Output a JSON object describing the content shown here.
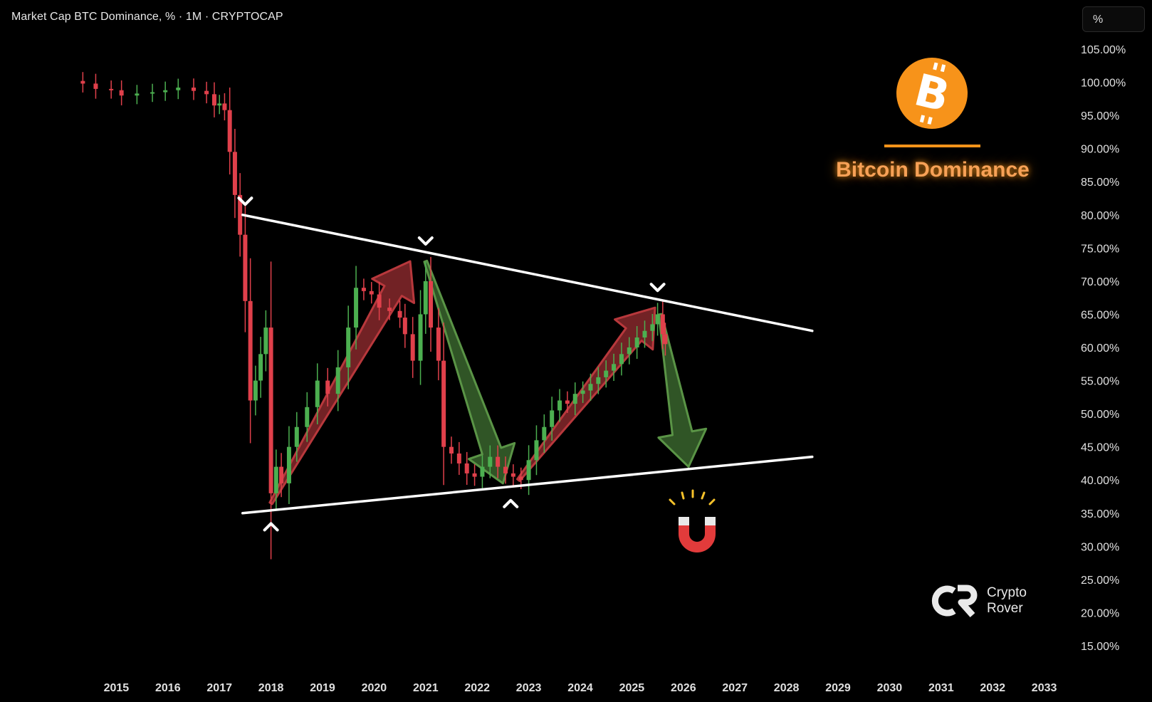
{
  "header": {
    "title": "Market Cap BTC Dominance, % · 1M · CRYPTOCAP",
    "unit_button": "%"
  },
  "overlay": {
    "badge_title": "Bitcoin Dominance",
    "brand_line1": "Crypto",
    "brand_line2": "Rover"
  },
  "colors": {
    "background": "#000000",
    "bull_candle": "#4caf50",
    "bear_candle": "#e0404b",
    "bull_arrow": "#8f2a2e",
    "bear_arrow": "#3c6a30",
    "accent": "#f7931a",
    "trendline": "#ffffff"
  },
  "icons": [
    "bitcoin-logo-icon",
    "magnet-icon",
    "crypto-rover-logo-icon"
  ],
  "chart_data": {
    "type": "candlestick",
    "interval": "1M",
    "ylim": [
      15,
      105
    ],
    "y_ticks": [
      "105.00%",
      "100.00%",
      "95.00%",
      "90.00%",
      "85.00%",
      "80.00%",
      "75.00%",
      "70.00%",
      "65.00%",
      "60.00%",
      "55.00%",
      "50.00%",
      "45.00%",
      "40.00%",
      "35.00%",
      "30.00%",
      "25.00%",
      "20.00%",
      "15.00%"
    ],
    "x_ticks": [
      "2015",
      "2016",
      "2017",
      "2018",
      "2019",
      "2020",
      "2021",
      "2022",
      "2023",
      "2024",
      "2025",
      "2026",
      "2027",
      "2028",
      "2029",
      "2030",
      "2031",
      "2032",
      "2033"
    ],
    "xlim": [
      2014.0,
      2033.8
    ],
    "grid": false,
    "closes": [
      {
        "t": 2014.35,
        "v": 99.8
      },
      {
        "t": 2014.6,
        "v": 99.0
      },
      {
        "t": 2014.9,
        "v": 98.8
      },
      {
        "t": 2015.1,
        "v": 98.0
      },
      {
        "t": 2015.4,
        "v": 98.3
      },
      {
        "t": 2015.7,
        "v": 98.5
      },
      {
        "t": 2015.95,
        "v": 98.8
      },
      {
        "t": 2016.2,
        "v": 99.2
      },
      {
        "t": 2016.5,
        "v": 98.7
      },
      {
        "t": 2016.75,
        "v": 98.2
      },
      {
        "t": 2016.9,
        "v": 96.5
      },
      {
        "t": 2017.0,
        "v": 96.8
      },
      {
        "t": 2017.1,
        "v": 95.8
      },
      {
        "t": 2017.2,
        "v": 89.5
      },
      {
        "t": 2017.3,
        "v": 83.0
      },
      {
        "t": 2017.4,
        "v": 77.0
      },
      {
        "t": 2017.5,
        "v": 67.0
      },
      {
        "t": 2017.6,
        "v": 52.0
      },
      {
        "t": 2017.7,
        "v": 55.0
      },
      {
        "t": 2017.8,
        "v": 59.0
      },
      {
        "t": 2017.9,
        "v": 63.0
      },
      {
        "t": 2018.0,
        "v": 38.0
      },
      {
        "t": 2018.1,
        "v": 42.0
      },
      {
        "t": 2018.2,
        "v": 39.5
      },
      {
        "t": 2018.35,
        "v": 45.0
      },
      {
        "t": 2018.5,
        "v": 48.0
      },
      {
        "t": 2018.7,
        "v": 51.0
      },
      {
        "t": 2018.9,
        "v": 55.0
      },
      {
        "t": 2019.1,
        "v": 53.0
      },
      {
        "t": 2019.3,
        "v": 57.0
      },
      {
        "t": 2019.5,
        "v": 63.0
      },
      {
        "t": 2019.65,
        "v": 69.0
      },
      {
        "t": 2019.8,
        "v": 68.5
      },
      {
        "t": 2019.95,
        "v": 68.0
      },
      {
        "t": 2020.1,
        "v": 66.0
      },
      {
        "t": 2020.3,
        "v": 65.5
      },
      {
        "t": 2020.5,
        "v": 64.5
      },
      {
        "t": 2020.6,
        "v": 62.0
      },
      {
        "t": 2020.75,
        "v": 58.0
      },
      {
        "t": 2020.9,
        "v": 65.0
      },
      {
        "t": 2021.0,
        "v": 70.0
      },
      {
        "t": 2021.1,
        "v": 63.0
      },
      {
        "t": 2021.25,
        "v": 58.0
      },
      {
        "t": 2021.35,
        "v": 45.0
      },
      {
        "t": 2021.5,
        "v": 44.0
      },
      {
        "t": 2021.65,
        "v": 42.5
      },
      {
        "t": 2021.8,
        "v": 41.0
      },
      {
        "t": 2021.95,
        "v": 40.5
      },
      {
        "t": 2022.1,
        "v": 42.0
      },
      {
        "t": 2022.25,
        "v": 43.5
      },
      {
        "t": 2022.4,
        "v": 42.0
      },
      {
        "t": 2022.55,
        "v": 41.0
      },
      {
        "t": 2022.7,
        "v": 40.5
      },
      {
        "t": 2022.85,
        "v": 40.0
      },
      {
        "t": 2023.0,
        "v": 43.0
      },
      {
        "t": 2023.15,
        "v": 46.0
      },
      {
        "t": 2023.3,
        "v": 48.0
      },
      {
        "t": 2023.45,
        "v": 50.5
      },
      {
        "t": 2023.6,
        "v": 52.0
      },
      {
        "t": 2023.75,
        "v": 51.5
      },
      {
        "t": 2023.9,
        "v": 53.0
      },
      {
        "t": 2024.05,
        "v": 53.5
      },
      {
        "t": 2024.2,
        "v": 54.5
      },
      {
        "t": 2024.35,
        "v": 55.5
      },
      {
        "t": 2024.5,
        "v": 56.5
      },
      {
        "t": 2024.65,
        "v": 57.5
      },
      {
        "t": 2024.8,
        "v": 59.0
      },
      {
        "t": 2024.95,
        "v": 60.0
      },
      {
        "t": 2025.1,
        "v": 61.5
      },
      {
        "t": 2025.25,
        "v": 62.5
      },
      {
        "t": 2025.4,
        "v": 63.5
      },
      {
        "t": 2025.5,
        "v": 65.0
      },
      {
        "t": 2025.6,
        "v": 62.0
      },
      {
        "t": 2025.65,
        "v": 60.5
      }
    ],
    "trendlines": [
      {
        "name": "resistance",
        "from": {
          "t": 2017.45,
          "v": 80.0
        },
        "to": {
          "t": 2028.5,
          "v": 62.5
        }
      },
      {
        "name": "support",
        "from": {
          "t": 2017.45,
          "v": 35.0
        },
        "to": {
          "t": 2028.5,
          "v": 43.5
        }
      }
    ],
    "pivots": [
      {
        "kind": "high",
        "t": 2017.5,
        "v": 82.0
      },
      {
        "kind": "high",
        "t": 2021.0,
        "v": 76.0
      },
      {
        "kind": "high",
        "t": 2025.5,
        "v": 69.0
      },
      {
        "kind": "low",
        "t": 2018.0,
        "v": 33.0
      },
      {
        "kind": "low",
        "t": 2022.65,
        "v": 36.5
      }
    ],
    "projection_arrows": [
      {
        "direction": "up",
        "from": {
          "t": 2018.0,
          "v": 36.5
        },
        "to": {
          "t": 2020.7,
          "v": 73.0
        }
      },
      {
        "direction": "down",
        "from": {
          "t": 2021.0,
          "v": 73.0
        },
        "to": {
          "t": 2022.5,
          "v": 39.5
        }
      },
      {
        "direction": "up",
        "from": {
          "t": 2022.8,
          "v": 40.0
        },
        "to": {
          "t": 2025.45,
          "v": 66.0
        }
      },
      {
        "direction": "down",
        "from": {
          "t": 2025.55,
          "v": 65.0
        },
        "to": {
          "t": 2026.1,
          "v": 42.0
        }
      }
    ]
  }
}
